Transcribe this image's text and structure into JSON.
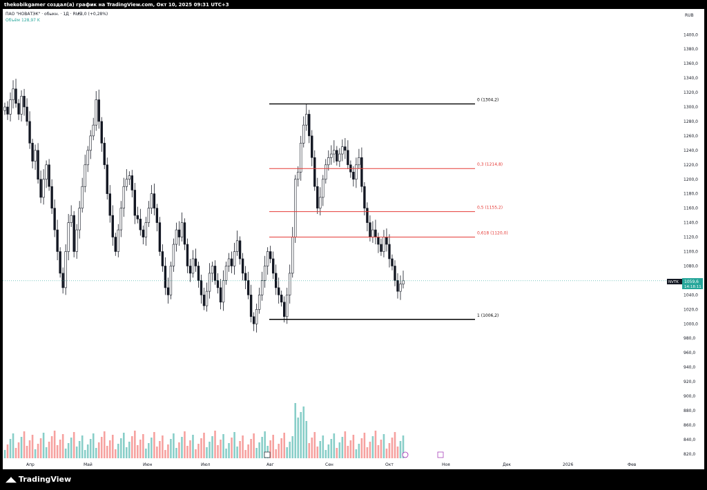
{
  "header": {
    "caption": "thekobikgamer создал(а) график на TradingView.com, Окт 10, 2025 09:31 UTC+3"
  },
  "legend": {
    "symbol_line": "ПАО \"НОВАТЭК\" · обыкн. · 1Д · RUS",
    "change": "+3,0 (+0,28%)",
    "volume_label": "Объём",
    "volume_value": "128,97 K"
  },
  "currency": "RUB",
  "footer": {
    "brand": "TradingView",
    "logo_icon": "tradingview-logo-icon"
  },
  "price_tag": {
    "ticker": "NVTK",
    "price": "1059,6",
    "timer": "14:18:11"
  },
  "colors": {
    "up": "#26a69a",
    "down": "#ef5350",
    "candle": "#131722",
    "fib_mid": "#e53935",
    "fib_edge": "#000000",
    "last_price": "#26a69a"
  },
  "chart_data": {
    "type": "candlestick",
    "y_axis_ticks": [
      "1400,0",
      "1380,0",
      "1360,0",
      "1340,0",
      "1320,0",
      "1300,0",
      "1280,0",
      "1260,0",
      "1240,0",
      "1220,0",
      "1200,0",
      "1180,0",
      "1160,0",
      "1140,0",
      "1120,0",
      "1100,0",
      "1080,0",
      "1060,0",
      "1040,0",
      "1020,0",
      "1000,0",
      "980,0",
      "960,0",
      "940,0",
      "920,0",
      "900,0",
      "880,0",
      "860,0",
      "840,0",
      "820,0"
    ],
    "x_axis_ticks": [
      "Апр",
      "Май",
      "Июн",
      "Июл",
      "Авг",
      "Сен",
      "Окт",
      "Ноя",
      "Дек",
      "2026",
      "Фев"
    ],
    "last_price": 1059.6,
    "fib_levels": [
      {
        "label": "0 (1304,2)",
        "value": 1304.2
      },
      {
        "label": "0,3 (1214,8)",
        "value": 1214.8
      },
      {
        "label": "0,5 (1155,2)",
        "value": 1155.2
      },
      {
        "label": "0,618 (1120,0)",
        "value": 1120.0
      },
      {
        "label": "1 (1006,2)",
        "value": 1006.2
      }
    ],
    "closes": [
      1300,
      1290,
      1310,
      1325,
      1305,
      1290,
      1315,
      1300,
      1280,
      1250,
      1225,
      1240,
      1200,
      1175,
      1200,
      1220,
      1190,
      1160,
      1130,
      1100,
      1070,
      1050,
      1100,
      1140,
      1150,
      1100,
      1130,
      1160,
      1190,
      1220,
      1240,
      1260,
      1275,
      1310,
      1280,
      1250,
      1220,
      1180,
      1150,
      1120,
      1100,
      1130,
      1160,
      1190,
      1200,
      1205,
      1185,
      1150,
      1145,
      1130,
      1120,
      1140,
      1160,
      1180,
      1160,
      1140,
      1100,
      1080,
      1050,
      1040,
      1080,
      1110,
      1130,
      1120,
      1140,
      1110,
      1080,
      1070,
      1090,
      1080,
      1060,
      1040,
      1025,
      1045,
      1070,
      1080,
      1060,
      1050,
      1030,
      1060,
      1080,
      1090,
      1080,
      1100,
      1115,
      1090,
      1070,
      1060,
      1040,
      1010,
      1000,
      1020,
      1040,
      1060,
      1080,
      1100,
      1090,
      1070,
      1050,
      1040,
      1030,
      1010,
      1040,
      1070,
      1120,
      1200,
      1210,
      1250,
      1275,
      1290,
      1260,
      1230,
      1190,
      1160,
      1175,
      1200,
      1220,
      1230,
      1235,
      1240,
      1225,
      1235,
      1245,
      1240,
      1220,
      1210,
      1200,
      1220,
      1230,
      1190,
      1160,
      1140,
      1120,
      1130,
      1120,
      1110,
      1100,
      1120,
      1110,
      1090,
      1080,
      1060,
      1045,
      1055,
      1059.6
    ],
    "volume_ticks_note": "volume bars drawn below price pane"
  }
}
